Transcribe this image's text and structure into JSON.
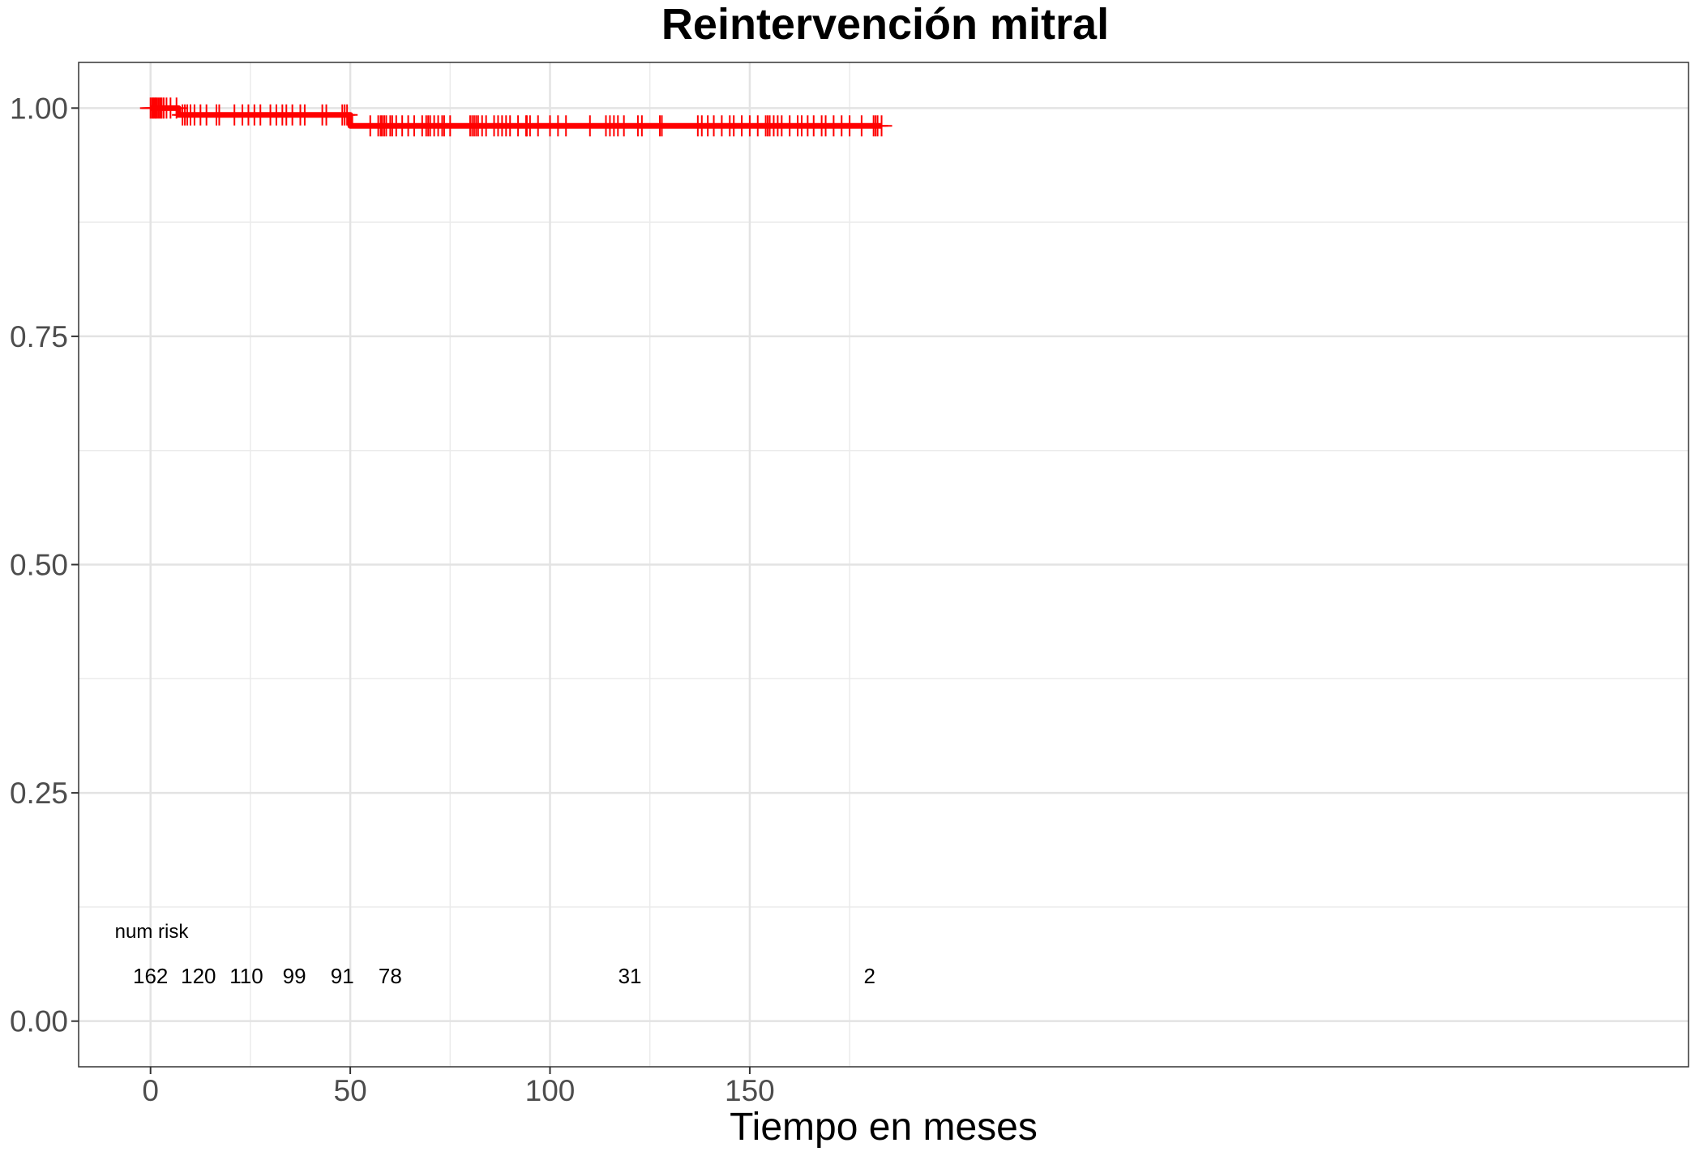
{
  "chart_data": {
    "type": "line",
    "title": "Reintervención mitral",
    "xlabel": "Tiempo en meses",
    "ylabel": "",
    "xlim": [
      -18,
      385
    ],
    "ylim": [
      -0.05,
      1.05
    ],
    "x_ticks": [
      0,
      50,
      100,
      150
    ],
    "x_tick_labels": [
      "0",
      "50",
      "100",
      "150"
    ],
    "y_ticks": [
      0,
      0.25,
      0.5,
      0.75,
      1
    ],
    "y_tick_labels": [
      "0.00",
      "0.25",
      "0.50",
      "0.75",
      "1.00"
    ],
    "grid": true,
    "legend": "none",
    "series": [
      {
        "color": "#ff0000",
        "steps": [
          {
            "x": 0,
            "y": 1.0
          },
          {
            "x": 7,
            "y": 0.9925
          },
          {
            "x": 50,
            "y": 0.9805
          }
        ],
        "x_end": 183,
        "censor_times": [
          0,
          0.4,
          0.7,
          1,
          1.3,
          1.6,
          2,
          2.4,
          2.8,
          3.3,
          4,
          5,
          6.5,
          8,
          8.6,
          9.2,
          10,
          11,
          12.5,
          14,
          16.5,
          17.2,
          21,
          23,
          24.5,
          26,
          27.5,
          30,
          31.5,
          33,
          34,
          35.5,
          37.5,
          38.6,
          43,
          44,
          48,
          48.6,
          49.2,
          55,
          57,
          57.6,
          58,
          58.5,
          59,
          60,
          60.5,
          61.5,
          63,
          64.5,
          66,
          68,
          69,
          69.5,
          70,
          71,
          72,
          73,
          73.5,
          75,
          80,
          80.5,
          81,
          81.5,
          82,
          83,
          84,
          86,
          87,
          88,
          89,
          90,
          92,
          94,
          94.2,
          95,
          97,
          100,
          102,
          104,
          110,
          114,
          115,
          116,
          117,
          118.5,
          122,
          123,
          127.5,
          128,
          137,
          138,
          139.5,
          141,
          143,
          145,
          146,
          148,
          150,
          152,
          154,
          154.5,
          155,
          156,
          157,
          158,
          160,
          162,
          163,
          164.5,
          166,
          168,
          169,
          171,
          173,
          175,
          178,
          181,
          181.5,
          182,
          183
        ]
      }
    ],
    "risk_table": {
      "label": "num risk",
      "times": [
        0,
        12,
        24,
        36,
        48,
        60,
        120,
        180
      ],
      "counts": [
        "162",
        "120",
        "110",
        "99",
        "91",
        "78",
        "31",
        "2"
      ]
    }
  }
}
